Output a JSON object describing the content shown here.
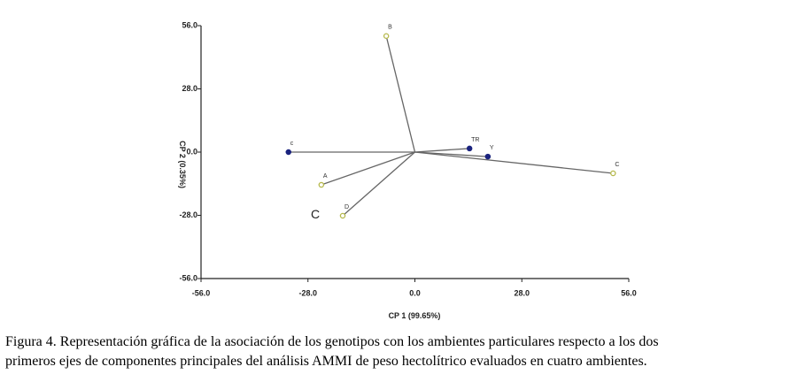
{
  "chart_data": {
    "type": "biplot",
    "xlabel": "CP 1 (99.65%)",
    "ylabel": "CP 2 (0.35%)",
    "xlim": [
      -56,
      56
    ],
    "ylim": [
      -56,
      56
    ],
    "xticks": [
      {
        "value": -56,
        "label": "-56.0"
      },
      {
        "value": -28,
        "label": "-28.0"
      },
      {
        "value": 0,
        "label": "0.0"
      },
      {
        "value": 28,
        "label": "28.0"
      },
      {
        "value": 56,
        "label": "56.0"
      }
    ],
    "yticks": [
      {
        "value": -56,
        "label": "-56.0"
      },
      {
        "value": -28,
        "label": "-28.0"
      },
      {
        "value": 0,
        "label": "0.0"
      },
      {
        "value": 28,
        "label": "28.0"
      },
      {
        "value": 56,
        "label": "56.0"
      }
    ],
    "series": [
      {
        "color": "#1a237e",
        "x": [
          -33.1,
          14.3,
          19.1
        ],
        "values": [
          0,
          1.6,
          -2.0
        ],
        "labels": [
          "c",
          "TR",
          "Y"
        ]
      },
      {
        "color": "#b5b84a",
        "x": [
          -7.5,
          -24.5,
          -18.9,
          51.9
        ],
        "values": [
          51.4,
          -14.5,
          -28.2,
          -9.4
        ],
        "labels": [
          "B",
          "A",
          "D",
          "C"
        ]
      }
    ],
    "annotation": "C",
    "caption": [
      "Figura 4.  Representación gráfica de la asociación de los genotipos con los  ambientes particulares respecto a los dos",
      "primeros ejes de componentes principales del análisis AMMI de peso hectolítrico evaluados en cuatro ambientes."
    ]
  }
}
